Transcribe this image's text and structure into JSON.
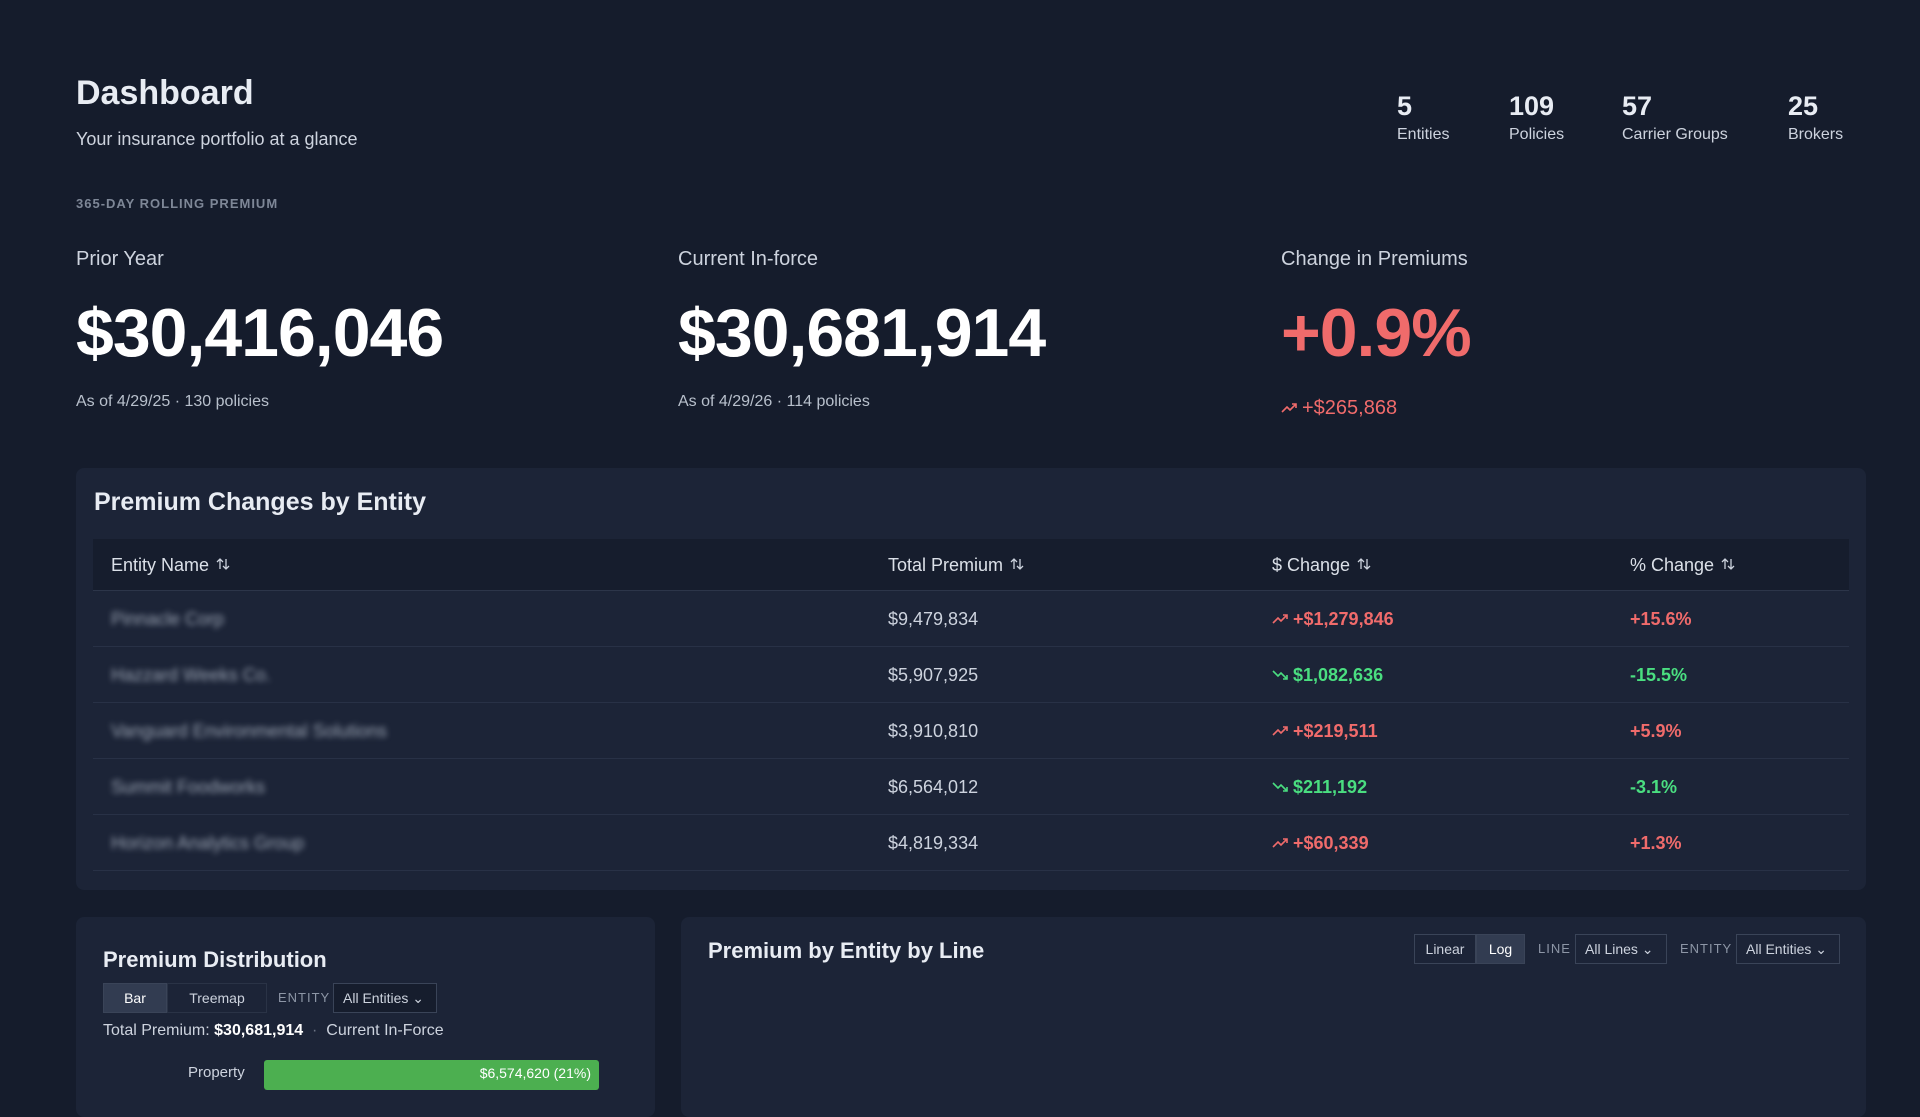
{
  "header": {
    "title": "Dashboard",
    "subtitle": "Your insurance portfolio at a glance"
  },
  "stats": [
    {
      "value": 5,
      "label": "Entities"
    },
    {
      "value": 109,
      "label": "Policies"
    },
    {
      "value": 57,
      "label": "Carrier Groups"
    },
    {
      "value": 25,
      "label": "Brokers"
    }
  ],
  "rolling": {
    "section_label": "365-DAY ROLLING PREMIUM",
    "metrics": [
      {
        "label": "Prior Year",
        "value": "$30,416,046",
        "note": "As of 4/29/25 · 130 policies"
      },
      {
        "label": "Current In-force",
        "value": "$30,681,914",
        "note": "As of 4/29/26 · 114 policies"
      },
      {
        "label": "Change in Premiums",
        "value": "+0.9%",
        "note": "+$265,868"
      }
    ]
  },
  "table": {
    "title": "Premium Changes by Entity",
    "columns": [
      "Entity Name",
      "Total Premium",
      "$ Change",
      "% Change"
    ],
    "rows": [
      [
        "Pinnacle Corp",
        "$9,479,834",
        "+$1,279,846",
        "+15.6%"
      ],
      [
        "Hazzard Weeks Co.",
        "$5,907,925",
        "$1,082,636",
        "-15.5%"
      ],
      [
        "Vanguard Environmental Solutions",
        "$3,910,810",
        "+$219,511",
        "+5.9%"
      ],
      [
        "Summit Foodworks",
        "$6,564,012",
        "$211,192",
        "-3.1%"
      ],
      [
        "Horizon Analytics Group",
        "$4,819,334",
        "+$60,339",
        "+1.3%"
      ]
    ]
  },
  "distribution": {
    "title": "Premium Distribution",
    "views": [
      "Bar",
      "Treemap"
    ],
    "filter_label": "ENTITY",
    "filter_value": "All Entities",
    "total_label": "Total Premium:",
    "total_value": "$30,681,914",
    "scope": "Current In-Force",
    "bar_label": "Property",
    "bar_value": "$6,574,620 (21%)"
  },
  "by_line": {
    "title": "Premium by Entity by Line",
    "scales": [
      "Linear",
      "Log"
    ],
    "line_label": "LINE",
    "line_value": "All Lines",
    "entity_label": "ENTITY",
    "entity_value": "All Entities"
  }
}
